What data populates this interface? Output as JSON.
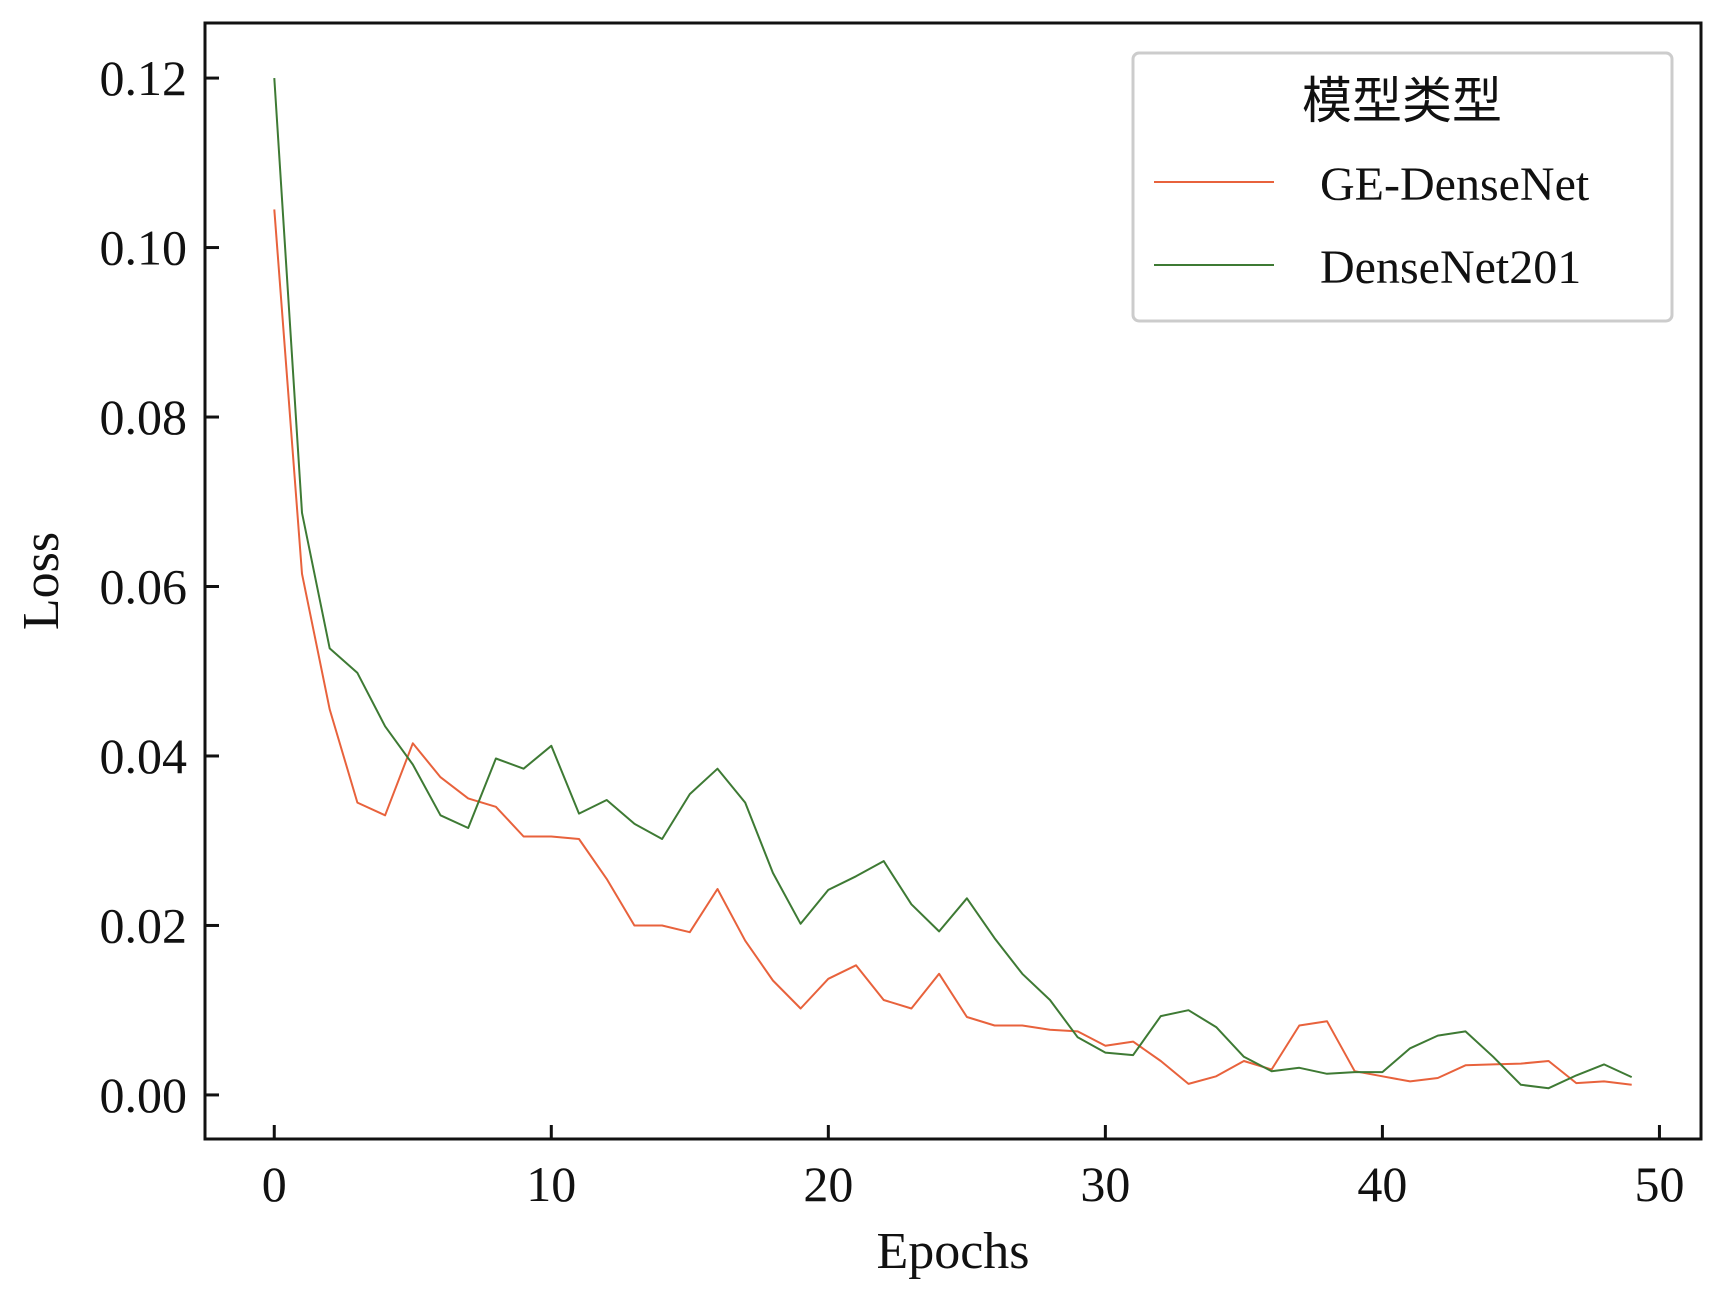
{
  "chart_data": {
    "type": "line",
    "title": "",
    "xlabel": "Epochs",
    "ylabel": "Loss",
    "xlim": [
      -2.5,
      51.5
    ],
    "ylim": [
      -0.0052,
      0.1265
    ],
    "xticks": [
      0,
      10,
      20,
      30,
      40,
      50
    ],
    "xtick_labels": [
      "0",
      "10",
      "20",
      "30",
      "40",
      "50"
    ],
    "yticks": [
      0.0,
      0.02,
      0.04,
      0.06,
      0.08,
      0.1,
      0.12
    ],
    "ytick_labels": [
      "0.00",
      "0.02",
      "0.04",
      "0.06",
      "0.08",
      "0.10",
      "0.12"
    ],
    "grid": false,
    "legend": {
      "title": "模型类型",
      "position": "top-right"
    },
    "x": [
      0,
      1,
      2,
      3,
      4,
      5,
      6,
      7,
      8,
      9,
      10,
      11,
      12,
      13,
      14,
      15,
      16,
      17,
      18,
      19,
      20,
      21,
      22,
      23,
      24,
      25,
      26,
      27,
      28,
      29,
      30,
      31,
      32,
      33,
      34,
      35,
      36,
      37,
      38,
      39,
      40,
      41,
      42,
      43,
      44,
      45,
      46,
      47,
      48,
      49
    ],
    "series": [
      {
        "name": "GE-DenseNet",
        "color": "#e8623c",
        "values": [
          0.1045,
          0.0615,
          0.0455,
          0.0345,
          0.033,
          0.0415,
          0.0375,
          0.035,
          0.034,
          0.0305,
          0.0305,
          0.0302,
          0.0255,
          0.02,
          0.02,
          0.0192,
          0.0243,
          0.0182,
          0.0135,
          0.0102,
          0.0137,
          0.0153,
          0.0112,
          0.0102,
          0.0143,
          0.0092,
          0.0082,
          0.0082,
          0.0077,
          0.0075,
          0.0058,
          0.0063,
          0.004,
          0.0013,
          0.0022,
          0.004,
          0.003,
          0.0082,
          0.0087,
          0.0028,
          0.0022,
          0.0016,
          0.002,
          0.0035,
          0.0036,
          0.0037,
          0.004,
          0.0014,
          0.0016,
          0.0012
        ]
      },
      {
        "name": "DenseNet201",
        "color": "#3e7a34",
        "values": [
          0.12,
          0.0687,
          0.0527,
          0.0498,
          0.0435,
          0.039,
          0.033,
          0.0315,
          0.0397,
          0.0385,
          0.0412,
          0.0332,
          0.0348,
          0.032,
          0.0302,
          0.0355,
          0.0385,
          0.0345,
          0.0262,
          0.0202,
          0.0242,
          0.0258,
          0.0276,
          0.0225,
          0.0193,
          0.0232,
          0.0185,
          0.0143,
          0.0112,
          0.0068,
          0.005,
          0.0047,
          0.0093,
          0.01,
          0.008,
          0.0045,
          0.0028,
          0.0032,
          0.0025,
          0.0027,
          0.0027,
          0.0055,
          0.007,
          0.0075,
          0.0045,
          0.0012,
          0.0008,
          0.0023,
          0.0036,
          0.0021
        ]
      }
    ]
  }
}
